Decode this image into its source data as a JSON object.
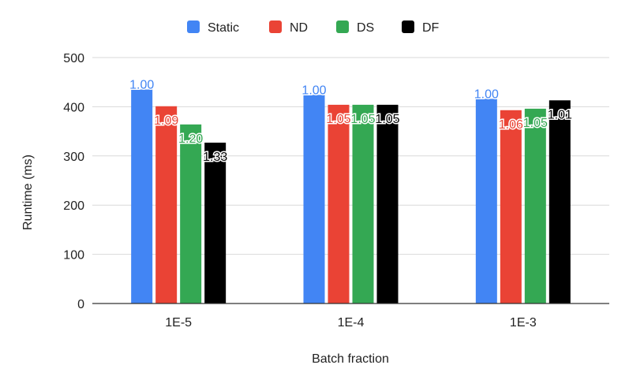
{
  "chart_data": {
    "type": "bar",
    "title": "",
    "xlabel": "Batch fraction",
    "ylabel": "Runtime (ms)",
    "ylim": [
      0,
      500
    ],
    "yticks": [
      0,
      100,
      200,
      300,
      400,
      500
    ],
    "grid": true,
    "legend_position": "top-center",
    "categories": [
      "1E-5",
      "1E-4",
      "1E-3"
    ],
    "series": [
      {
        "name": "Static",
        "color": "#4285f4",
        "values": [
          435,
          424,
          416
        ],
        "labels": [
          "1.00",
          "1.00",
          "1.00"
        ]
      },
      {
        "name": "ND",
        "color": "#ea4335",
        "values": [
          401,
          404,
          393
        ],
        "labels": [
          "1.09",
          "1.05",
          "1.06"
        ]
      },
      {
        "name": "DS",
        "color": "#34a853",
        "values": [
          364,
          404,
          396
        ],
        "labels": [
          "1.20",
          "1.05",
          "1.05"
        ]
      },
      {
        "name": "DF",
        "color": "#000000",
        "values": [
          327,
          404,
          413
        ],
        "labels": [
          "1.33",
          "1.05",
          "1.01"
        ]
      }
    ]
  }
}
